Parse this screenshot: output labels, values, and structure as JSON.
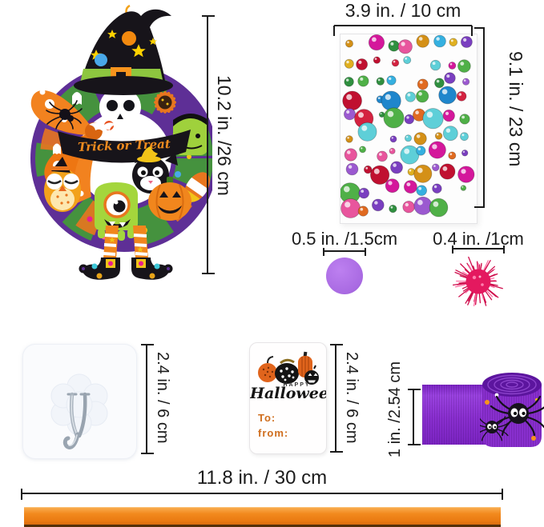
{
  "wreath": {
    "banner_text": "Trick or Treat",
    "measure": {
      "label": "10.2 in. /26 cm"
    }
  },
  "gem_sheet": {
    "measure_width": {
      "label": "3.9 in. / 10 cm"
    },
    "measure_height": {
      "label": "9.1 in. / 23 cm"
    },
    "palette": [
      "#35b0e0",
      "#1f86cc",
      "#d42240",
      "#c01030",
      "#e8559d",
      "#d4179b",
      "#9b59d0",
      "#7a3fc0",
      "#4fb047",
      "#2f8f3f",
      "#e0b020",
      "#d49017",
      "#e06a20",
      "#5ecfd8"
    ],
    "rows": 10,
    "cols": 9,
    "seed": 11
  },
  "purple_dot": {
    "measure": {
      "label": "0.5 in. /1.5cm"
    },
    "color": "#a96ae2"
  },
  "pom_pom": {
    "measure": {
      "label": "0.4 in. /1cm"
    },
    "color": "#e4195f",
    "strand_color": "#cf0d4c",
    "glint_color": "#ff6fa5",
    "strands": 54
  },
  "hook": {
    "measure": {
      "label": "2.4 in. / 6 cm"
    }
  },
  "gift_tag": {
    "happy": "HAPPY",
    "title": "Halloween",
    "to_label": "To:",
    "from_label": "from:",
    "measure": {
      "label": "2.4 in. / 6 cm"
    }
  },
  "ribbon_roll": {
    "measure": {
      "label": "1 in. /2.54 cm"
    }
  },
  "orange_ribbon": {
    "measure": {
      "label": "11.8 in. / 30 cm"
    }
  }
}
